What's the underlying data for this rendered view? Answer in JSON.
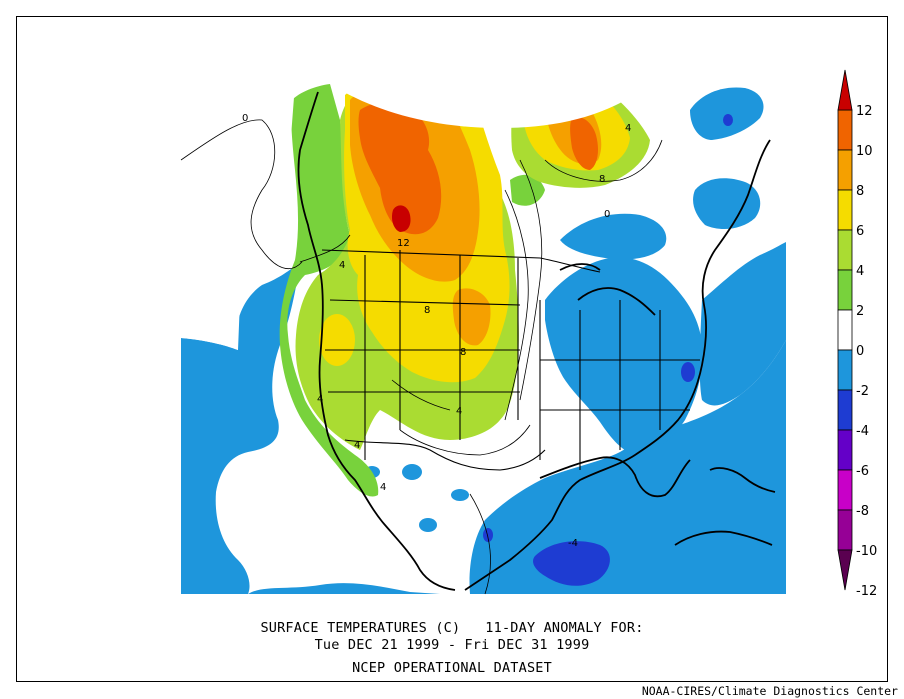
{
  "title": {
    "line1": "SURFACE TEMPERATURES (C)   11-DAY ANOMALY FOR:",
    "line2": "Tue DEC 21 1999 - Fri DEC 31 1999",
    "line3": "NCEP OPERATIONAL DATASET"
  },
  "credit": "NOAA-CIRES/Climate Diagnostics Center",
  "colorbar": {
    "levels": [
      "12",
      "10",
      "8",
      "6",
      "4",
      "2",
      "0",
      "-2",
      "-4",
      "-6",
      "-8",
      "-10",
      "-12"
    ],
    "colors": [
      "#c80000",
      "#f06400",
      "#f5a000",
      "#f5dc00",
      "#aadc32",
      "#78d23c",
      "#ffffff",
      "#1e96dc",
      "#1e3cd2",
      "#6400c8",
      "#c800c8",
      "#960096",
      "#5a0050"
    ]
  },
  "contour_labels": [
    "0",
    "4",
    "8",
    "12",
    "8",
    "8",
    "4",
    "4",
    "4",
    "4",
    "4",
    "0",
    "-4"
  ],
  "palette": {
    "ocean_cool": "#1e96dc",
    "deep_cool": "#1e3cd2",
    "warm2": "#78d23c",
    "warm4": "#aadc32",
    "warm6": "#f5dc00",
    "warm8": "#f5a000",
    "warm10": "#f06400",
    "warm12": "#c80000"
  }
}
